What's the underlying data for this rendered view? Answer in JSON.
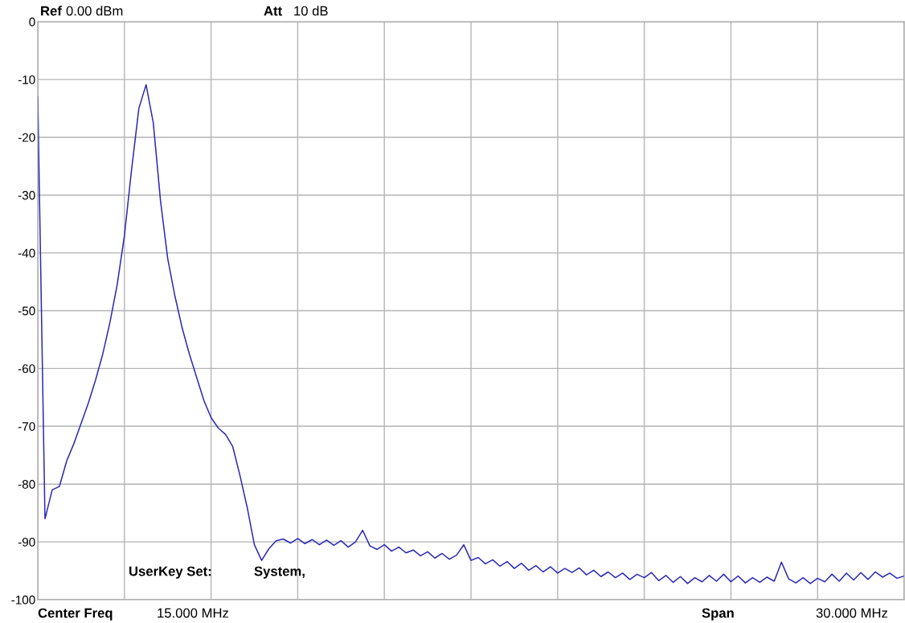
{
  "chart_data": {
    "type": "line",
    "annotations": [
      "Ref",
      "0.00 dBm",
      "Att",
      "10 dB",
      "UserKey Set:",
      "System,",
      "Center Freq",
      "15.000 MHz",
      "Span",
      "30.000 MHz"
    ],
    "categories": [
      null,
      null,
      null,
      null,
      null,
      null,
      null,
      null,
      null,
      null,
      null,
      null,
      null,
      null,
      null,
      null,
      null,
      null,
      null,
      null,
      null,
      null,
      null,
      null,
      null,
      null,
      null,
      null,
      null,
      null,
      null,
      null,
      null,
      null,
      null,
      null,
      null,
      null,
      null,
      null,
      null,
      null,
      null,
      null,
      null,
      null,
      null,
      null,
      null,
      null,
      null,
      null,
      null,
      null,
      null,
      null,
      null,
      null,
      null,
      null,
      null,
      null,
      null,
      null,
      null,
      null,
      null,
      null,
      null,
      null,
      null,
      null,
      null,
      null,
      null,
      null,
      null,
      null,
      null,
      null,
      null,
      null,
      null,
      null,
      null,
      null,
      null,
      null,
      null,
      null,
      null,
      null,
      null,
      null,
      null,
      null,
      null,
      null,
      null,
      null,
      null,
      null,
      null,
      null,
      null,
      null,
      null,
      null,
      null,
      null,
      null,
      null,
      null,
      null,
      null,
      null,
      null,
      null,
      null,
      null,
      null
    ],
    "series": [
      {
        "color": "#2a2ab8",
        "values": [
          -13,
          -86,
          -81,
          -80.4,
          -76,
          -73,
          -69.5,
          -66,
          -62,
          -57.5,
          -52,
          -45.5,
          -37,
          -25.5,
          -15,
          -10.9,
          -17.5,
          -31,
          -41,
          -47.5,
          -53,
          -57.5,
          -61.5,
          -65.5,
          -68.5,
          -70.3,
          -71.4,
          -73.5,
          -78.5,
          -84,
          -90.5,
          -93.2,
          -91.2,
          -89.8,
          -89.5,
          -90.2,
          -89.4,
          -90.3,
          -89.6,
          -90.5,
          -89.7,
          -90.6,
          -89.8,
          -90.9,
          -90,
          -88,
          -90.7,
          -91.3,
          -90.5,
          -91.6,
          -90.9,
          -91.9,
          -91.4,
          -92.4,
          -91.7,
          -92.8,
          -92,
          -93,
          -92.3,
          -90.5,
          -93.2,
          -92.7,
          -93.8,
          -93.1,
          -94.2,
          -93.4,
          -94.6,
          -93.7,
          -94.9,
          -94.1,
          -95.2,
          -94.3,
          -95.4,
          -94.6,
          -95.3,
          -94.5,
          -95.7,
          -94.9,
          -96,
          -95.2,
          -96.2,
          -95.4,
          -96.5,
          -95.6,
          -96.2,
          -95.3,
          -96.7,
          -95.8,
          -97,
          -96,
          -97.2,
          -96.2,
          -96.9,
          -95.8,
          -96.8,
          -95.6,
          -96.9,
          -95.9,
          -97.1,
          -96.2,
          -97,
          -96.1,
          -96.8,
          -93.5,
          -96.4,
          -97.1,
          -96.2,
          -97.2,
          -96.3,
          -96.9,
          -95.6,
          -96.8,
          -95.4,
          -96.6,
          -95.3,
          -96.5,
          -95.2,
          -96.1,
          -95.4,
          -96.3,
          -95.9
        ]
      }
    ],
    "ylim": [
      -100,
      0
    ],
    "yticks": [
      0,
      -10,
      -20,
      -30,
      -40,
      -50,
      -60,
      -70,
      -80,
      -90,
      -100
    ],
    "tick_labels": "y",
    "grid": true,
    "line_style": "solid",
    "marker": "none"
  }
}
